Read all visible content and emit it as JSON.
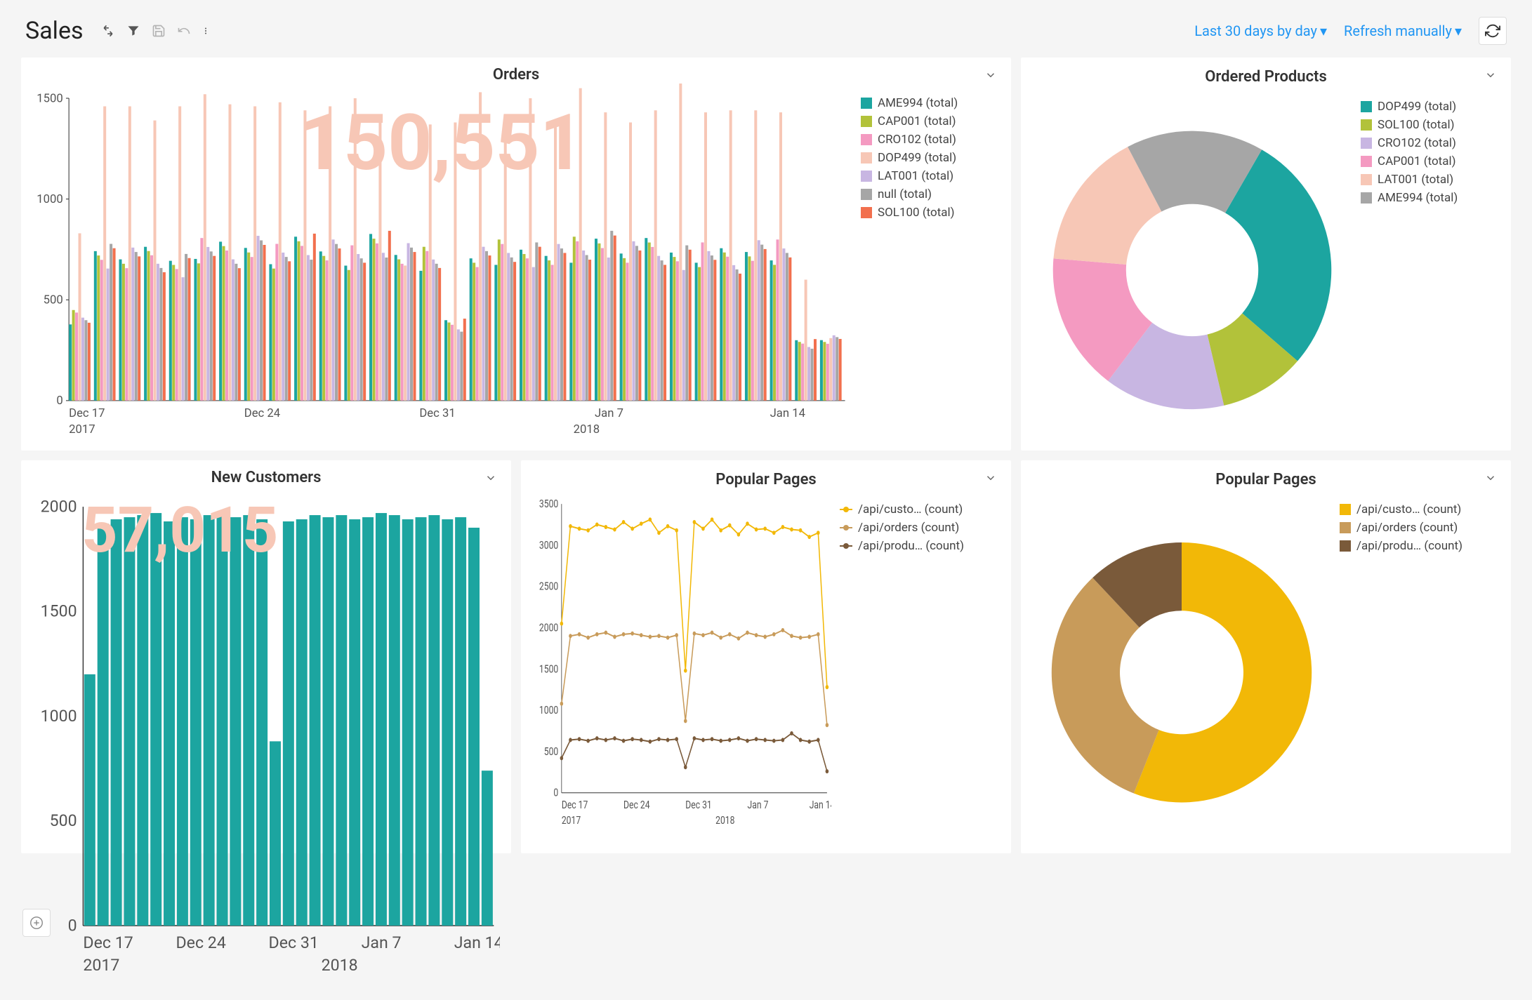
{
  "header": {
    "title": "Sales",
    "date_range_label": "Last 30 days by day",
    "refresh_label": "Refresh manually"
  },
  "panels": {
    "orders": {
      "title": "Orders",
      "big_number": "150,551",
      "big_number_color": "#f7c7b6",
      "type": "grouped-bar",
      "ylim": [
        0,
        1500
      ],
      "ytick_step": 500,
      "x_categories": [
        "Dec 17",
        "Dec 24",
        "Dec 31",
        "Jan 7",
        "Jan 14"
      ],
      "x_years": [
        "2017",
        "2018"
      ],
      "series": [
        {
          "name": "AME994 (total)",
          "color": "#1ca5a0"
        },
        {
          "name": "CAP001 (total)",
          "color": "#b2c23a"
        },
        {
          "name": "CRO102 (total)",
          "color": "#f49ac1"
        },
        {
          "name": "DOP499 (total)",
          "color": "#f7c7b6"
        },
        {
          "name": "LAT001 (total)",
          "color": "#c8b6e2"
        },
        {
          "name": "null (total)",
          "color": "#a6a6a6"
        },
        {
          "name": "SOL100 (total)",
          "color": "#f2704e"
        }
      ],
      "days": 31,
      "sample_pattern": {
        "base_values": [
          420,
          720,
          730,
          700,
          680,
          740,
          730,
          750,
          720,
          760,
          740,
          720,
          780,
          730,
          700,
          380,
          720,
          740,
          720,
          740,
          760,
          780,
          760,
          740,
          720,
          720,
          700,
          730,
          740,
          280,
          300
        ],
        "dop_tall": [
          830,
          1460,
          1460,
          1390,
          1460,
          1520,
          1470,
          1460,
          1480,
          1440,
          1460,
          1500,
          1420,
          670,
          1370,
          1380,
          1530,
          1420,
          1500,
          1360,
          1550,
          1430,
          1380,
          1440,
          1580,
          1430,
          1440,
          1440,
          1430,
          600,
          310
        ]
      }
    },
    "ordered_products": {
      "title": "Ordered Products",
      "type": "donut",
      "series": [
        {
          "name": "DOP499 (total)",
          "color": "#1ca5a0",
          "value": 28
        },
        {
          "name": "SOL100 (total)",
          "color": "#b2c23a",
          "value": 10
        },
        {
          "name": "CRO102 (total)",
          "color": "#c8b6e2",
          "value": 14
        },
        {
          "name": "CAP001 (total)",
          "color": "#f49ac1",
          "value": 16
        },
        {
          "name": "LAT001 (total)",
          "color": "#f7c7b6",
          "value": 16
        },
        {
          "name": "AME994 (total)",
          "color": "#a6a6a6",
          "value": 16
        }
      ]
    },
    "new_customers": {
      "title": "New Customers",
      "big_number": "57,015",
      "big_number_color": "#f7c7b6",
      "type": "bar",
      "color": "#1ca5a0",
      "ylim": [
        0,
        2000
      ],
      "ytick_step": 500,
      "x_categories": [
        "Dec 17",
        "Dec 24",
        "Dec 31",
        "Jan 7",
        "Jan 14"
      ],
      "x_years": [
        "2017",
        "2018"
      ],
      "values": [
        1200,
        1920,
        1940,
        1950,
        1960,
        1970,
        1930,
        1950,
        1940,
        1960,
        1970,
        1950,
        1960,
        1940,
        880,
        1930,
        1940,
        1960,
        1950,
        1960,
        1940,
        1950,
        1970,
        1960,
        1940,
        1950,
        1960,
        1940,
        1950,
        1900,
        740
      ]
    },
    "popular_pages_line": {
      "title": "Popular Pages",
      "type": "line",
      "ylim": [
        0,
        3500
      ],
      "ytick_step": 500,
      "x_categories": [
        "Dec 17",
        "Dec 24",
        "Dec 31",
        "Jan 7",
        "Jan 14"
      ],
      "x_years": [
        "2017",
        "2018"
      ],
      "series": [
        {
          "name": "/api/custo… (count)",
          "color": "#f2b807",
          "values": [
            2050,
            3230,
            3200,
            3180,
            3250,
            3220,
            3190,
            3280,
            3200,
            3260,
            3310,
            3150,
            3230,
            3180,
            1480,
            3280,
            3200,
            3310,
            3180,
            3240,
            3130,
            3260,
            3190,
            3200,
            3150,
            3220,
            3190,
            3180,
            3100,
            3150,
            1280
          ]
        },
        {
          "name": "/api/orders (count)",
          "color": "#c89b5a",
          "values": [
            1080,
            1900,
            1920,
            1880,
            1920,
            1940,
            1890,
            1920,
            1930,
            1910,
            1890,
            1900,
            1880,
            1910,
            870,
            1930,
            1910,
            1940,
            1880,
            1920,
            1870,
            1940,
            1910,
            1890,
            1920,
            1970,
            1900,
            1880,
            1890,
            1920,
            820
          ]
        },
        {
          "name": "/api/produ… (count)",
          "color": "#7a5a3a",
          "values": [
            420,
            640,
            650,
            630,
            660,
            640,
            660,
            630,
            650,
            640,
            620,
            650,
            640,
            650,
            310,
            660,
            640,
            650,
            630,
            640,
            660,
            630,
            650,
            640,
            630,
            640,
            720,
            640,
            620,
            640,
            260
          ]
        }
      ]
    },
    "popular_pages_donut": {
      "title": "Popular Pages",
      "type": "donut",
      "series": [
        {
          "name": "/api/custo… (count)",
          "color": "#f2b807",
          "value": 56
        },
        {
          "name": "/api/orders (count)",
          "color": "#c89b5a",
          "value": 32
        },
        {
          "name": "/api/produ… (count)",
          "color": "#7a5a3a",
          "value": 12
        }
      ]
    }
  }
}
